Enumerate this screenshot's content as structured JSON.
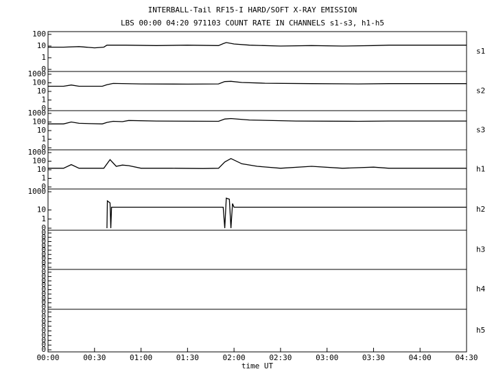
{
  "chart_data": [
    {
      "type": "line",
      "title": "INTERBALL-Tail RF15-I HARD/SOFT X-RAY EMISSION",
      "subtitle": "LBS 00:00 04:20 971103  COUNT RATE IN CHANNELS s1-s3, h1-h5",
      "name": "s1",
      "log": true,
      "color": "#000000",
      "xlim": [
        0,
        270
      ],
      "ylim": [
        0.1,
        100
      ],
      "yticks": [
        100,
        10,
        1,
        {
          "value": 0.1,
          "label": "0"
        }
      ],
      "x": [
        0,
        10,
        20,
        30,
        36,
        38,
        50,
        70,
        90,
        110,
        113,
        115,
        120,
        130,
        150,
        170,
        190,
        210,
        220,
        270
      ],
      "values": [
        8,
        8,
        9,
        7,
        8,
        12,
        12,
        11,
        12,
        11,
        16,
        20,
        15,
        12,
        10,
        11,
        10,
        11,
        12,
        12
      ]
    },
    {
      "type": "line",
      "name": "s2",
      "log": true,
      "color": "#000000",
      "xlim": [
        0,
        270
      ],
      "ylim": [
        0.1,
        1000
      ],
      "yticks": [
        1000,
        100,
        10,
        1,
        {
          "value": 0.1,
          "label": "0"
        }
      ],
      "x": [
        0,
        10,
        15,
        20,
        35,
        38,
        42,
        60,
        90,
        110,
        114,
        118,
        125,
        140,
        170,
        200,
        220,
        270
      ],
      "values": [
        40,
        40,
        55,
        40,
        40,
        60,
        85,
        75,
        70,
        75,
        140,
        150,
        110,
        90,
        80,
        75,
        80,
        80
      ]
    },
    {
      "type": "line",
      "name": "s3",
      "log": true,
      "color": "#000000",
      "xlim": [
        0,
        270
      ],
      "ylim": [
        0.1,
        1000
      ],
      "yticks": [
        1000,
        100,
        10,
        1,
        {
          "value": 0.1,
          "label": "0"
        }
      ],
      "x": [
        0,
        10,
        15,
        20,
        35,
        38,
        42,
        48,
        52,
        70,
        110,
        114,
        118,
        130,
        160,
        200,
        220,
        270
      ],
      "values": [
        60,
        60,
        100,
        70,
        60,
        90,
        120,
        110,
        150,
        130,
        120,
        220,
        250,
        170,
        130,
        120,
        130,
        130
      ]
    },
    {
      "type": "line",
      "name": "h1",
      "log": true,
      "color": "#000000",
      "xlim": [
        0,
        270
      ],
      "ylim": [
        0.1,
        1000
      ],
      "yticks": [
        1000,
        100,
        10,
        1,
        {
          "value": 0.1,
          "label": "0"
        }
      ],
      "x": [
        0,
        10,
        15,
        20,
        36,
        40,
        44,
        48,
        52,
        60,
        80,
        100,
        110,
        114,
        118,
        125,
        135,
        150,
        170,
        190,
        210,
        220,
        270
      ],
      "values": [
        15,
        15,
        40,
        15,
        15,
        150,
        25,
        35,
        30,
        15,
        15,
        14,
        15,
        80,
        200,
        50,
        25,
        15,
        25,
        15,
        20,
        15,
        15
      ]
    },
    {
      "type": "line",
      "name": "h2",
      "log": true,
      "color": "#000000",
      "xlim": [
        0,
        270
      ],
      "ylim": [
        0.1,
        1000
      ],
      "yticks": [
        1000,
        10,
        1,
        {
          "value": 0.1,
          "label": "0"
        }
      ],
      "x": [
        38,
        38.3,
        40,
        40.5,
        41,
        113,
        114,
        115,
        117,
        118,
        119,
        120,
        270
      ],
      "values": [
        0.1,
        100,
        60,
        0.1,
        20,
        20,
        0.1,
        200,
        150,
        0.1,
        50,
        20,
        20
      ]
    },
    {
      "type": "line",
      "name": "h3",
      "log": true,
      "color": "#000000",
      "xlim": [
        0,
        270
      ],
      "ylim": [
        1e-09,
        0.1
      ],
      "yticks": [
        {
          "value": 0.1,
          "label": "0"
        },
        {
          "value": 0.01,
          "label": "0"
        },
        {
          "value": 0.001,
          "label": "0"
        },
        {
          "value": 0.0001,
          "label": "0"
        },
        {
          "value": 1e-05,
          "label": "0"
        },
        {
          "value": 1e-06,
          "label": "0"
        },
        {
          "value": 1e-07,
          "label": "0"
        },
        {
          "value": 1e-08,
          "label": "0"
        },
        {
          "value": 1e-09,
          "label": "0"
        }
      ],
      "x": [],
      "values": []
    },
    {
      "type": "line",
      "name": "h4",
      "log": true,
      "color": "#000000",
      "xlim": [
        0,
        270
      ],
      "ylim": [
        1e-09,
        0.1
      ],
      "yticks": [
        {
          "value": 0.1,
          "label": "0"
        },
        {
          "value": 0.01,
          "label": "0"
        },
        {
          "value": 0.001,
          "label": "0"
        },
        {
          "value": 0.0001,
          "label": "0"
        },
        {
          "value": 1e-05,
          "label": "0"
        },
        {
          "value": 1e-06,
          "label": "0"
        },
        {
          "value": 1e-07,
          "label": "0"
        },
        {
          "value": 1e-08,
          "label": "0"
        },
        {
          "value": 1e-09,
          "label": "0"
        }
      ],
      "x": [],
      "values": []
    },
    {
      "type": "line",
      "name": "h5",
      "log": true,
      "color": "#000000",
      "xlim": [
        0,
        270
      ],
      "ylim": [
        1e-09,
        0.1
      ],
      "yticks": [
        {
          "value": 0.1,
          "label": "0"
        },
        {
          "value": 0.01,
          "label": "0"
        },
        {
          "value": 0.001,
          "label": "0"
        },
        {
          "value": 0.0001,
          "label": "0"
        },
        {
          "value": 1e-05,
          "label": "0"
        },
        {
          "value": 1e-06,
          "label": "0"
        },
        {
          "value": 1e-07,
          "label": "0"
        },
        {
          "value": 1e-08,
          "label": "0"
        },
        {
          "value": 1e-09,
          "label": "0"
        }
      ],
      "x": [],
      "values": [],
      "xlabel": "time UT",
      "xticks": [
        {
          "value": 0,
          "label": "00:00"
        },
        {
          "value": 30,
          "label": "00:30"
        },
        {
          "value": 60,
          "label": "01:00"
        },
        {
          "value": 90,
          "label": "01:30"
        },
        {
          "value": 120,
          "label": "02:00"
        },
        {
          "value": 150,
          "label": "02:30"
        },
        {
          "value": 180,
          "label": "03:00"
        },
        {
          "value": 210,
          "label": "03:30"
        },
        {
          "value": 240,
          "label": "04:00"
        },
        {
          "value": 270,
          "label": "04:30"
        }
      ]
    }
  ]
}
